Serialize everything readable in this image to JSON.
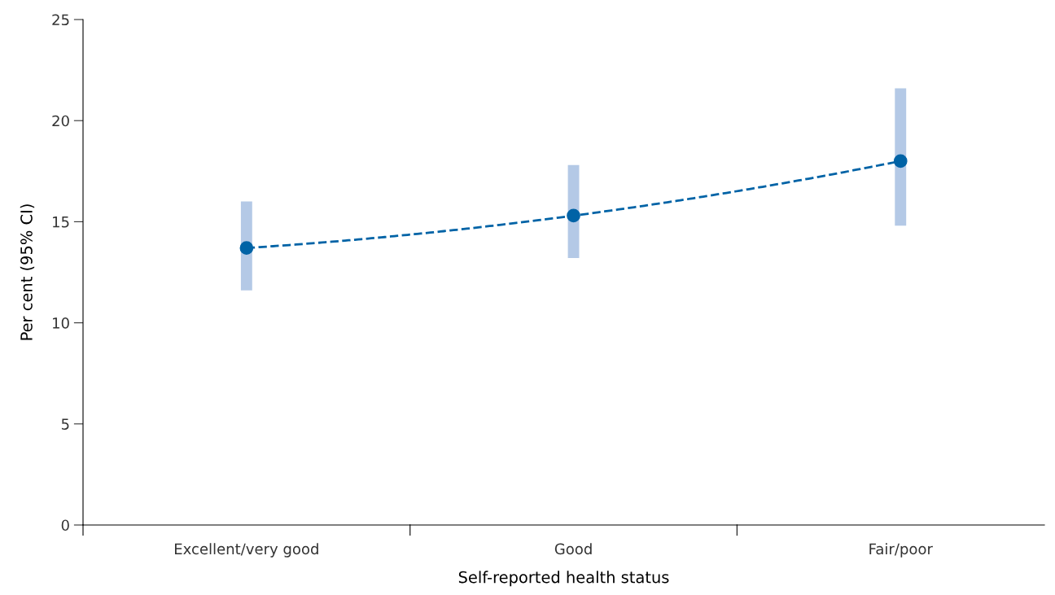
{
  "chart_data": {
    "type": "line",
    "xlabel": "Self-reported health status",
    "ylabel": "Per cent (95% CI)",
    "categories": [
      "Excellent/very good",
      "Good",
      "Fair/poor"
    ],
    "values": [
      13.7,
      15.3,
      18.0
    ],
    "errors": [
      [
        11.6,
        16.0
      ],
      [
        13.2,
        17.8
      ],
      [
        14.8,
        21.6
      ]
    ],
    "color": "#0063a6",
    "ylim": [
      0,
      25
    ],
    "yticks": [
      0,
      5,
      10,
      15,
      20,
      25
    ],
    "grid": false,
    "legend": false,
    "marker": "circle",
    "line_style": "dashed"
  }
}
